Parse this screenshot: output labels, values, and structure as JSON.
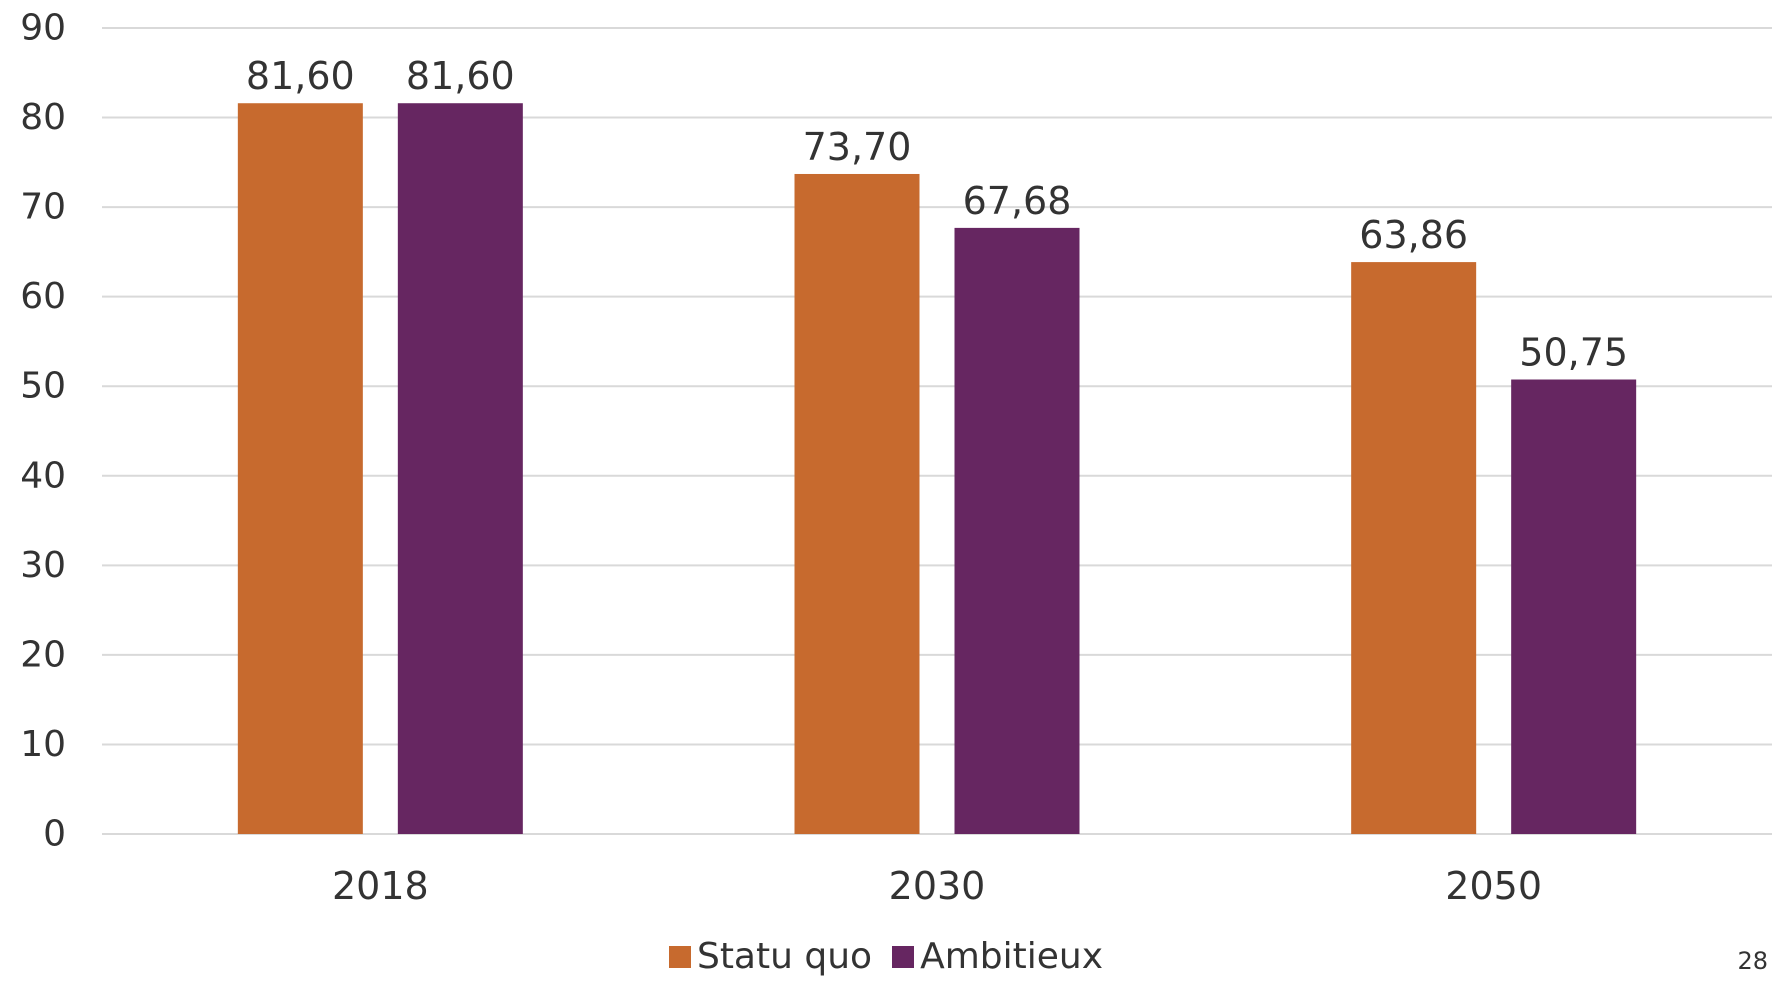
{
  "chart_data": {
    "type": "bar",
    "categories": [
      "2018",
      "2030",
      "2050"
    ],
    "series": [
      {
        "name": "Statu quo",
        "values": [
          81.6,
          73.7,
          63.86
        ],
        "labels": [
          "81,60",
          "73,70",
          "63,86"
        ],
        "color": "#C76A2E"
      },
      {
        "name": "Ambitieux",
        "values": [
          81.6,
          67.68,
          50.75
        ],
        "labels": [
          "81,60",
          "67,68",
          "50,75"
        ],
        "color": "#662661"
      }
    ],
    "ylim": [
      0,
      90
    ],
    "yticks": [
      "0",
      "10",
      "20",
      "30",
      "40",
      "50",
      "60",
      "70",
      "80",
      "90"
    ],
    "grid": true,
    "legend": "bottom-center",
    "title": "",
    "xlabel": "",
    "ylabel": ""
  },
  "page_number": "28",
  "colors": {
    "grid": "#D9D9D9",
    "text": "#333333"
  }
}
